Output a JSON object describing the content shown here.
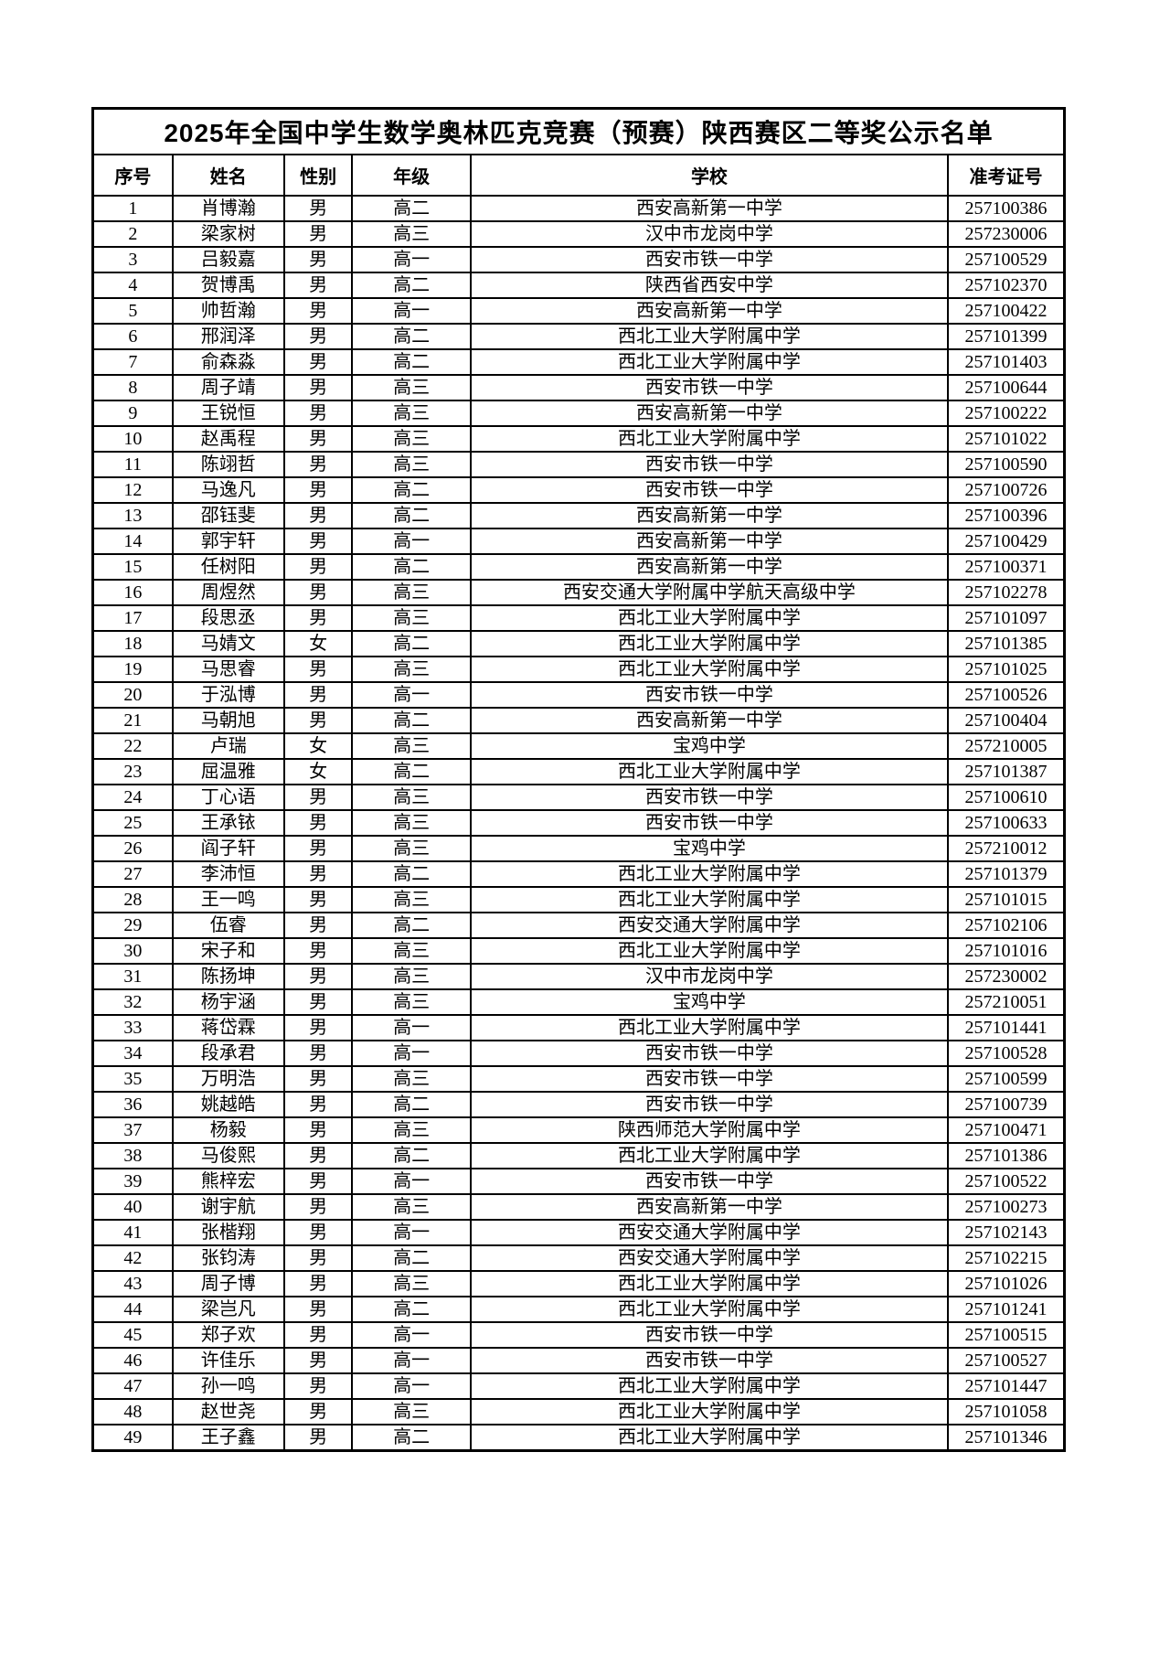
{
  "title": "2025年全国中学生数学奥林匹克竞赛（预赛）陕西赛区二等奖公示名单",
  "table": {
    "columns": [
      "序号",
      "姓名",
      "性别",
      "年级",
      "学校",
      "准考证号"
    ],
    "rows": [
      [
        "1",
        "肖博瀚",
        "男",
        "高二",
        "西安高新第一中学",
        "257100386"
      ],
      [
        "2",
        "梁家树",
        "男",
        "高三",
        "汉中市龙岗中学",
        "257230006"
      ],
      [
        "3",
        "吕毅嘉",
        "男",
        "高一",
        "西安市铁一中学",
        "257100529"
      ],
      [
        "4",
        "贺博禹",
        "男",
        "高二",
        "陕西省西安中学",
        "257102370"
      ],
      [
        "5",
        "帅哲瀚",
        "男",
        "高一",
        "西安高新第一中学",
        "257100422"
      ],
      [
        "6",
        "邢润泽",
        "男",
        "高二",
        "西北工业大学附属中学",
        "257101399"
      ],
      [
        "7",
        "俞森淼",
        "男",
        "高二",
        "西北工业大学附属中学",
        "257101403"
      ],
      [
        "8",
        "周子靖",
        "男",
        "高三",
        "西安市铁一中学",
        "257100644"
      ],
      [
        "9",
        "王锐恒",
        "男",
        "高三",
        "西安高新第一中学",
        "257100222"
      ],
      [
        "10",
        "赵禹程",
        "男",
        "高三",
        "西北工业大学附属中学",
        "257101022"
      ],
      [
        "11",
        "陈翊哲",
        "男",
        "高三",
        "西安市铁一中学",
        "257100590"
      ],
      [
        "12",
        "马逸凡",
        "男",
        "高二",
        "西安市铁一中学",
        "257100726"
      ],
      [
        "13",
        "邵钰斐",
        "男",
        "高二",
        "西安高新第一中学",
        "257100396"
      ],
      [
        "14",
        "郭宇轩",
        "男",
        "高一",
        "西安高新第一中学",
        "257100429"
      ],
      [
        "15",
        "任树阳",
        "男",
        "高二",
        "西安高新第一中学",
        "257100371"
      ],
      [
        "16",
        "周煜然",
        "男",
        "高三",
        "西安交通大学附属中学航天高级中学",
        "257102278"
      ],
      [
        "17",
        "段思丞",
        "男",
        "高三",
        "西北工业大学附属中学",
        "257101097"
      ],
      [
        "18",
        "马婧文",
        "女",
        "高二",
        "西北工业大学附属中学",
        "257101385"
      ],
      [
        "19",
        "马思睿",
        "男",
        "高三",
        "西北工业大学附属中学",
        "257101025"
      ],
      [
        "20",
        "于泓博",
        "男",
        "高一",
        "西安市铁一中学",
        "257100526"
      ],
      [
        "21",
        "马朝旭",
        "男",
        "高二",
        "西安高新第一中学",
        "257100404"
      ],
      [
        "22",
        "卢瑞",
        "女",
        "高三",
        "宝鸡中学",
        "257210005"
      ],
      [
        "23",
        "屈温雅",
        "女",
        "高二",
        "西北工业大学附属中学",
        "257101387"
      ],
      [
        "24",
        "丁心语",
        "男",
        "高三",
        "西安市铁一中学",
        "257100610"
      ],
      [
        "25",
        "王承铱",
        "男",
        "高三",
        "西安市铁一中学",
        "257100633"
      ],
      [
        "26",
        "阎子轩",
        "男",
        "高三",
        "宝鸡中学",
        "257210012"
      ],
      [
        "27",
        "李沛恒",
        "男",
        "高二",
        "西北工业大学附属中学",
        "257101379"
      ],
      [
        "28",
        "王一鸣",
        "男",
        "高三",
        "西北工业大学附属中学",
        "257101015"
      ],
      [
        "29",
        "伍睿",
        "男",
        "高二",
        "西安交通大学附属中学",
        "257102106"
      ],
      [
        "30",
        "宋子和",
        "男",
        "高三",
        "西北工业大学附属中学",
        "257101016"
      ],
      [
        "31",
        "陈扬坤",
        "男",
        "高三",
        "汉中市龙岗中学",
        "257230002"
      ],
      [
        "32",
        "杨宇涵",
        "男",
        "高三",
        "宝鸡中学",
        "257210051"
      ],
      [
        "33",
        "蒋岱霖",
        "男",
        "高一",
        "西北工业大学附属中学",
        "257101441"
      ],
      [
        "34",
        "段承君",
        "男",
        "高一",
        "西安市铁一中学",
        "257100528"
      ],
      [
        "35",
        "万明浩",
        "男",
        "高三",
        "西安市铁一中学",
        "257100599"
      ],
      [
        "36",
        "姚越皓",
        "男",
        "高二",
        "西安市铁一中学",
        "257100739"
      ],
      [
        "37",
        "杨毅",
        "男",
        "高三",
        "陕西师范大学附属中学",
        "257100471"
      ],
      [
        "38",
        "马俊熙",
        "男",
        "高二",
        "西北工业大学附属中学",
        "257101386"
      ],
      [
        "39",
        "熊梓宏",
        "男",
        "高一",
        "西安市铁一中学",
        "257100522"
      ],
      [
        "40",
        "谢宇航",
        "男",
        "高三",
        "西安高新第一中学",
        "257100273"
      ],
      [
        "41",
        "张楷翔",
        "男",
        "高一",
        "西安交通大学附属中学",
        "257102143"
      ],
      [
        "42",
        "张钧涛",
        "男",
        "高二",
        "西安交通大学附属中学",
        "257102215"
      ],
      [
        "43",
        "周子博",
        "男",
        "高三",
        "西北工业大学附属中学",
        "257101026"
      ],
      [
        "44",
        "梁岂凡",
        "男",
        "高二",
        "西北工业大学附属中学",
        "257101241"
      ],
      [
        "45",
        "郑子欢",
        "男",
        "高一",
        "西安市铁一中学",
        "257100515"
      ],
      [
        "46",
        "许佳乐",
        "男",
        "高一",
        "西安市铁一中学",
        "257100527"
      ],
      [
        "47",
        "孙一鸣",
        "男",
        "高一",
        "西北工业大学附属中学",
        "257101447"
      ],
      [
        "48",
        "赵世尧",
        "男",
        "高三",
        "西北工业大学附属中学",
        "257101058"
      ],
      [
        "49",
        "王子鑫",
        "男",
        "高二",
        "西北工业大学附属中学",
        "257101346"
      ]
    ]
  }
}
